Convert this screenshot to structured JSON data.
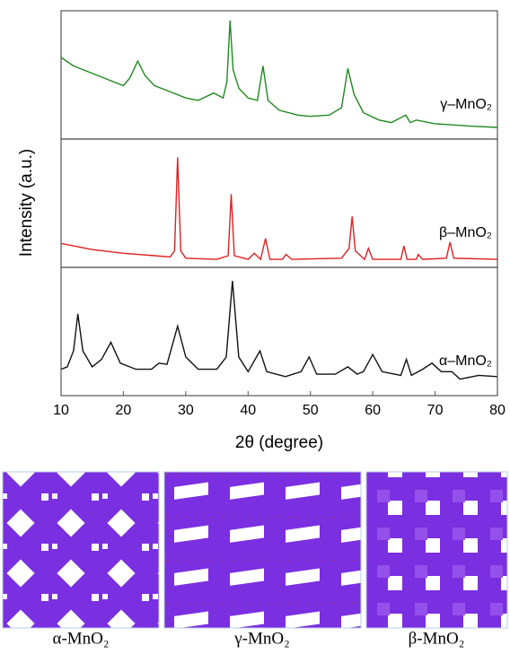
{
  "figure": {
    "ylabel": "Intensity (a.u.)"
  },
  "chart_data": [
    {
      "type": "line",
      "x": [
        10,
        12,
        14,
        16,
        18,
        20,
        21,
        22.3,
        23.5,
        25,
        27,
        30,
        32,
        34.5,
        36,
        36.6,
        37.1,
        37.6,
        38.5,
        40,
        41.5,
        42.4,
        43.2,
        45,
        48,
        50,
        53,
        55,
        56,
        57,
        58.5,
        61,
        63,
        65.3,
        66,
        67,
        70,
        73,
        76,
        80
      ],
      "series": [
        {
          "name": "γ–MnO₂",
          "color": "#1f8a1f",
          "values": [
            65,
            58,
            54,
            50,
            46,
            42,
            48,
            62,
            50,
            42,
            38,
            32,
            30,
            36,
            32,
            45,
            95,
            55,
            40,
            32,
            30,
            58,
            30,
            22,
            18,
            17,
            18,
            24,
            56,
            35,
            20,
            14,
            12,
            18,
            12,
            14,
            11,
            10,
            9,
            8
          ]
        }
      ],
      "xlim": [
        10,
        80
      ],
      "ylim": [
        0,
        100
      ]
    },
    {
      "type": "line",
      "x": [
        10,
        15,
        20,
        25,
        27.5,
        28.2,
        28.7,
        29.2,
        30,
        35,
        36.8,
        37.3,
        37.8,
        40,
        41,
        42,
        42.8,
        43.5,
        45.5,
        46.1,
        47,
        55,
        56.2,
        56.7,
        57.2,
        58.7,
        59.3,
        60,
        64.5,
        65,
        65.5,
        67,
        67.3,
        68,
        71.8,
        72.4,
        73,
        80
      ],
      "series": [
        {
          "name": "β–MnO₂",
          "color": "#e02020",
          "values": [
            18,
            13,
            10,
            8,
            7,
            12,
            88,
            12,
            6,
            5,
            8,
            58,
            8,
            5,
            10,
            5,
            22,
            5,
            5,
            9,
            5,
            6,
            14,
            40,
            12,
            5,
            14,
            5,
            5,
            16,
            5,
            5,
            9,
            5,
            6,
            19,
            6,
            5
          ]
        }
      ],
      "xlim": [
        10,
        80
      ],
      "ylim": [
        0,
        100
      ]
    },
    {
      "type": "line",
      "x": [
        10,
        11,
        12,
        12.7,
        13.5,
        15,
        16.5,
        18,
        19.5,
        22,
        24.5,
        25.7,
        27,
        28.7,
        30,
        32,
        35,
        36.5,
        37.5,
        38.5,
        40,
        41.9,
        43,
        46,
        48.5,
        49.8,
        51,
        54,
        56,
        57.5,
        58.5,
        60,
        61.5,
        64.5,
        65.4,
        66.2,
        68,
        69.5,
        71,
        72.7,
        74,
        77,
        80
      ],
      "series": [
        {
          "name": "α–MnO₂",
          "color": "#111111",
          "values": [
            20,
            22,
            35,
            65,
            35,
            22,
            28,
            42,
            25,
            20,
            20,
            25,
            24,
            55,
            30,
            20,
            20,
            30,
            92,
            30,
            18,
            35,
            18,
            14,
            18,
            30,
            16,
            16,
            22,
            16,
            18,
            32,
            18,
            15,
            28,
            15,
            20,
            25,
            18,
            18,
            12,
            15,
            14
          ]
        }
      ],
      "xlim": [
        10,
        80
      ],
      "ylim": [
        0,
        100
      ],
      "xticks": [
        10,
        20,
        30,
        40,
        50,
        60,
        70,
        80
      ],
      "xlabel": "2θ (degree)"
    }
  ],
  "structures": {
    "labels": [
      "α-MnO₂",
      "γ-MnO₂",
      "β-MnO₂"
    ]
  }
}
